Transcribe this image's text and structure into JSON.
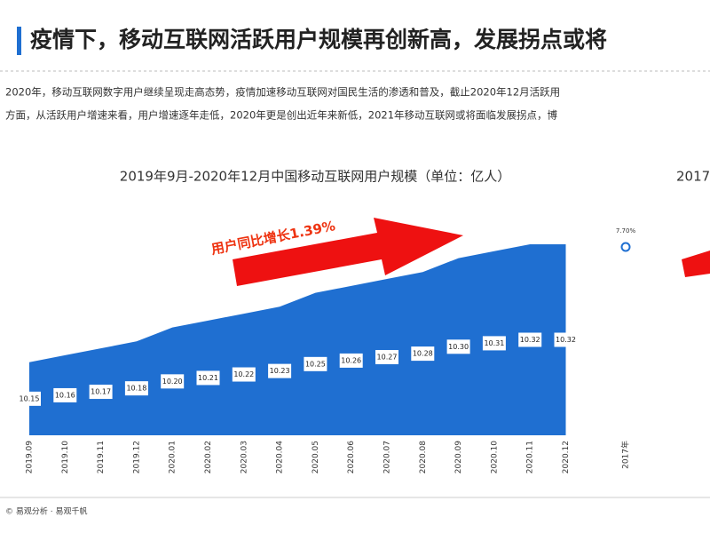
{
  "header": {
    "title": "疫情下，移动互联网活跃用户规模再创新高，发展拐点或将",
    "paragraph": [
      "2020年，移动互联网数字用户继续呈现走高态势，疫情加速移动互联网对国民生活的渗透和普及，截止2020年12月活跃用",
      "方面，从活跃用户增速来看，用户增速逐年走低，2020年更是创出近年来新低，2021年移动互联网或将面临发展拐点，博"
    ]
  },
  "chart_data": [
    {
      "type": "area",
      "title": "2019年9月-2020年12月中国移动互联网用户规模（单位：亿人）",
      "annotation": "用户同比增长1.39%",
      "categories": [
        "2019.09",
        "2019.10",
        "2019.11",
        "2019.12",
        "2020.01",
        "2020.02",
        "2020.03",
        "2020.04",
        "2020.05",
        "2020.06",
        "2020.07",
        "2020.08",
        "2020.09",
        "2020.10",
        "2020.11",
        "2020.12"
      ],
      "values": [
        10.15,
        10.16,
        10.17,
        10.18,
        10.2,
        10.21,
        10.22,
        10.23,
        10.25,
        10.26,
        10.27,
        10.28,
        10.3,
        10.31,
        10.32,
        10.32
      ],
      "value_labels": [
        "10.15",
        "10.16",
        "10.17",
        "10.18",
        "10.20",
        "10.21",
        "10.22",
        "10.23",
        "10.25",
        "10.26",
        "10.27",
        "10.28",
        "10.30",
        "10.31",
        "10.32",
        "10.32"
      ],
      "color": "#1f6fd1"
    },
    {
      "type": "line",
      "title": "2017",
      "categories": [
        "2017年"
      ],
      "values": [
        7.7
      ],
      "value_labels": [
        "7.70%"
      ],
      "color": "#1f6fd1"
    }
  ],
  "footer": "© 易观分析 · 易观千帆"
}
